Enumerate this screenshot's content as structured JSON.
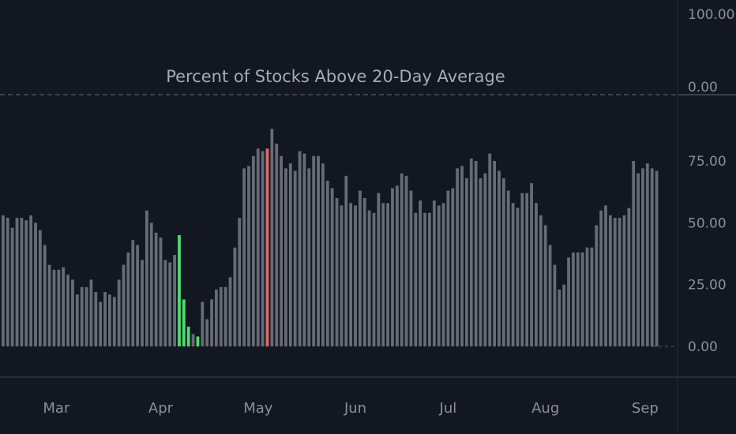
{
  "chart_data": {
    "type": "bar",
    "title": "Percent of Stocks Above 20-Day Average",
    "upper_pane": {
      "yticks": [
        "100.00",
        "0.00"
      ]
    },
    "ylim": [
      0,
      100
    ],
    "yticks": [
      "75.00",
      "50.00",
      "25.00",
      "0.00"
    ],
    "ytick_values": [
      75,
      50,
      25,
      0
    ],
    "xticks": [
      {
        "label": "Mar",
        "index": 11.5
      },
      {
        "label": "Apr",
        "index": 34
      },
      {
        "label": "May",
        "index": 55
      },
      {
        "label": "Jun",
        "index": 76
      },
      {
        "label": "Jul",
        "index": 96
      },
      {
        "label": "Aug",
        "index": 117
      },
      {
        "label": "Sep",
        "index": 138.5
      }
    ],
    "colors": {
      "normal": "#676b76",
      "low": "#4fdc6e",
      "high": "#e06a6a",
      "background": "#131722",
      "axis_text": "#8a8f9c"
    },
    "highlight_low_indices": [
      38,
      39,
      40,
      42
    ],
    "highlight_high_indices": [
      57
    ],
    "values": [
      53,
      52,
      48,
      52,
      52,
      51,
      53,
      50,
      47,
      41,
      33,
      31,
      31,
      32,
      29,
      27,
      21,
      24,
      24,
      27,
      22,
      18,
      22,
      21,
      20,
      27,
      33,
      38,
      43,
      41,
      35,
      55,
      50,
      46,
      44,
      35,
      34,
      37,
      45,
      19,
      8,
      5,
      4,
      18,
      11,
      19,
      23,
      24,
      24,
      28,
      40,
      52,
      72,
      73,
      77,
      80,
      79,
      80,
      88,
      82,
      77,
      72,
      74,
      71,
      79,
      78,
      72,
      77,
      77,
      74,
      67,
      64,
      60,
      57,
      69,
      58,
      57,
      63,
      60,
      55,
      54,
      62,
      58,
      58,
      64,
      65,
      70,
      69,
      63,
      54,
      59,
      54,
      54,
      59,
      57,
      58,
      63,
      64,
      72,
      73,
      68,
      76,
      75,
      68,
      70,
      78,
      75,
      71,
      68,
      63,
      58,
      56,
      62,
      62,
      66,
      58,
      53,
      49,
      41,
      33,
      23,
      25,
      36,
      38,
      38,
      38,
      40,
      40,
      49,
      55,
      57,
      53,
      52,
      52,
      53,
      56,
      75,
      70,
      72,
      74,
      72,
      71
    ]
  }
}
